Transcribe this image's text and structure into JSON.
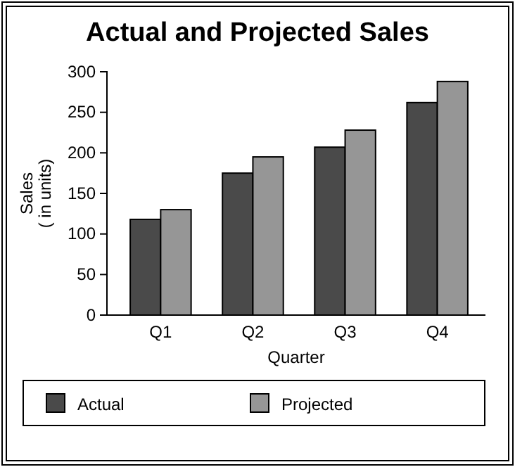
{
  "chart_data": {
    "type": "bar",
    "title": "Actual and Projected Sales",
    "xlabel": "Quarter",
    "ylabel": "Sales\n( in units)",
    "categories": [
      "Q1",
      "Q2",
      "Q3",
      "Q4"
    ],
    "series": [
      {
        "name": "Actual",
        "color": "#4a4a4a",
        "values": [
          118,
          175,
          207,
          262
        ]
      },
      {
        "name": "Projected",
        "color": "#969696",
        "values": [
          130,
          195,
          228,
          288
        ]
      }
    ],
    "ylim": [
      0,
      300
    ],
    "yticks": [
      0,
      50,
      100,
      150,
      200,
      250,
      300
    ],
    "grid": false,
    "legend": "bottom"
  }
}
